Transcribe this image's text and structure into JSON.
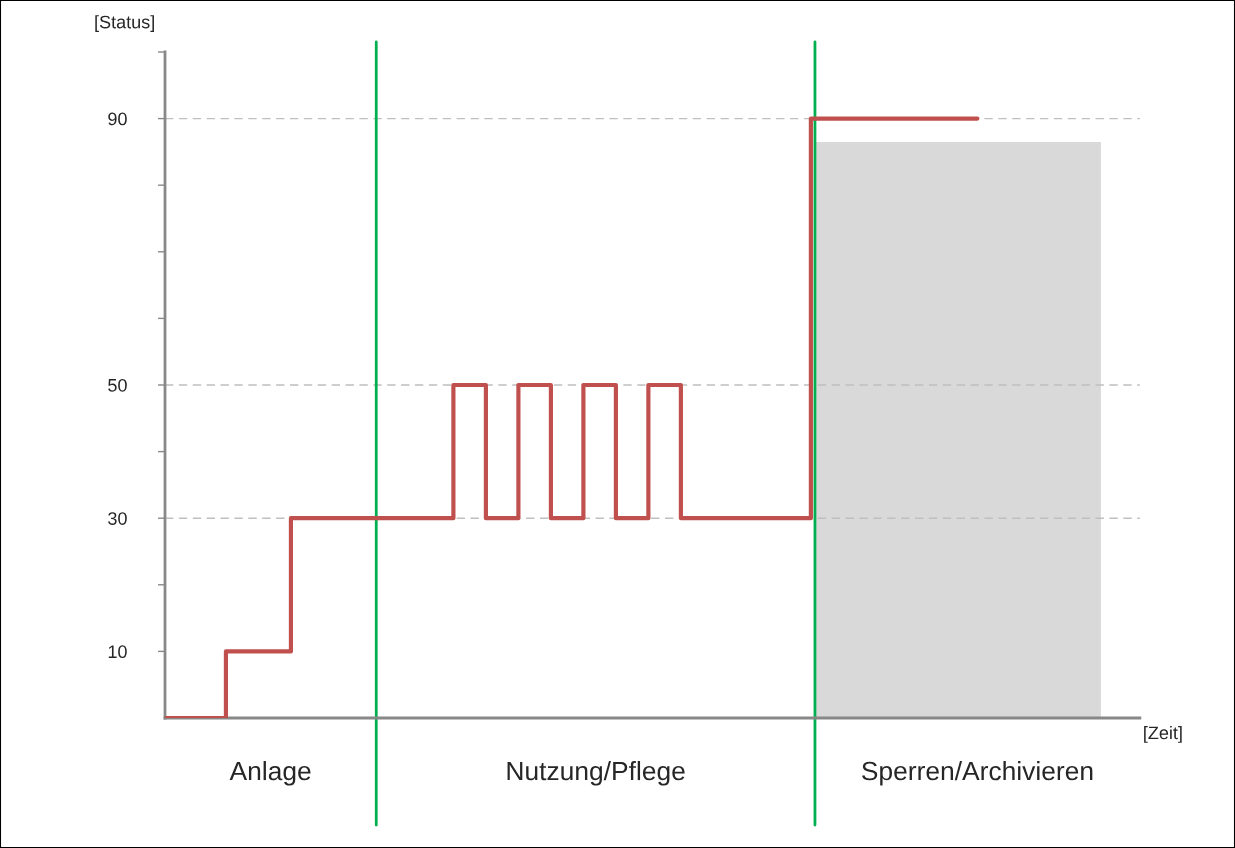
{
  "chart_data": {
    "type": "step",
    "ylabel": "[Status]",
    "categories": [
      null,
      null,
      null,
      null,
      null,
      null,
      null,
      null,
      null,
      null,
      null,
      null,
      null,
      null,
      null,
      null,
      null,
      null,
      null,
      null,
      null,
      null,
      null,
      null,
      null,
      null,
      null,
      null,
      null,
      null,
      null,
      null,
      null,
      null,
      null,
      null,
      null,
      null,
      null,
      null,
      null,
      null,
      null,
      null,
      null,
      null,
      null,
      null,
      null,
      null,
      null,
      null,
      null,
      null,
      null,
      null,
      null,
      null,
      null,
      null,
      null,
      null,
      null,
      null,
      null,
      null,
      null,
      null,
      null,
      null,
      null,
      null,
      null,
      null,
      null,
      null,
      null,
      null,
      null,
      null,
      null,
      null,
      null,
      null,
      null,
      null,
      null,
      null,
      null,
      null,
      null,
      null,
      null,
      null,
      null,
      null,
      null,
      null,
      null,
      null,
      null
    ],
    "series": [
      {
        "color": "#c0504d",
        "values": [
          0,
          0,
          0,
          0,
          0,
          0,
          0,
          0,
          10,
          10,
          10,
          10,
          10,
          10,
          10,
          10,
          30,
          30,
          30,
          30,
          30,
          30,
          30,
          30,
          30,
          30,
          30,
          30,
          30,
          30,
          30,
          30,
          30,
          30,
          30,
          30,
          50,
          50,
          50,
          50,
          30,
          30,
          30,
          30,
          50,
          50,
          50,
          50,
          30,
          30,
          30,
          30,
          50,
          50,
          50,
          50,
          30,
          30,
          30,
          30,
          50,
          50,
          50,
          50,
          30,
          30,
          30,
          30,
          30,
          30,
          30,
          30,
          30,
          30,
          30,
          30,
          30,
          30,
          30,
          30,
          90,
          90,
          90,
          90,
          90,
          90,
          90,
          90,
          90,
          90,
          90,
          90,
          90,
          90,
          90,
          90,
          90,
          90,
          90,
          90,
          90
        ]
      }
    ],
    "ylim": [
      0,
      100
    ],
    "yticks": [
      {
        "value": 10,
        "label": "10"
      },
      {
        "value": 20,
        "label": null
      },
      {
        "value": 30,
        "label": "30"
      },
      {
        "value": 40,
        "label": null
      },
      {
        "value": 50,
        "label": "50"
      },
      {
        "value": 60,
        "label": null
      },
      {
        "value": 70,
        "label": null
      },
      {
        "value": 80,
        "label": null
      },
      {
        "value": 90,
        "label": "90"
      },
      {
        "value": 100,
        "label": null
      }
    ],
    "tick_labels": "y",
    "grid": false,
    "legend": false,
    "line_style": "solid",
    "marker": "none",
    "ref_lines": [
      {
        "axis": "y",
        "value": 30,
        "color": "#bfbfbf",
        "line_style": "dashed"
      },
      {
        "axis": "y",
        "value": 50,
        "color": "#bfbfbf",
        "line_style": "dashed"
      },
      {
        "axis": "y",
        "value": 90,
        "color": "#bfbfbf",
        "line_style": "dashed"
      }
    ],
    "annotations": [
      "Anlage",
      "Nutzung/Pflege",
      "Sperren/Archivieren",
      "[Zeit]"
    ]
  }
}
